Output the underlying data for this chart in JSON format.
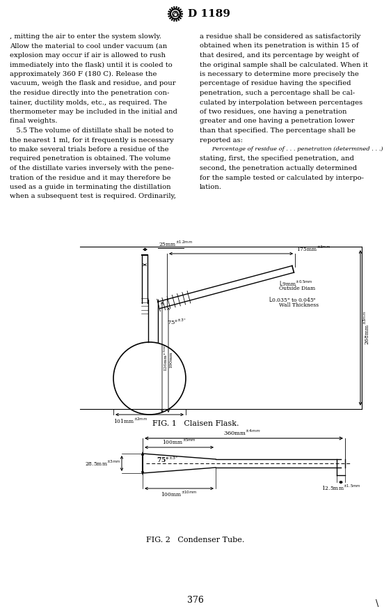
{
  "title": "D 1189",
  "page_number": "376",
  "left_col_lines": [
    ", mitting the air to enter the system slowly.",
    "Allow the material to cool under vacuum (an",
    "explosion may occur if air is allowed to rush",
    "immediately into the flask) until it is cooled to",
    "approximately 360 F (180 C). Release the",
    "vacuum, weigh the flask and residue, and pour",
    "the residue directly into the penetration con-",
    "tainer, ductility molds, etc., as required. The",
    "thermometer may be included in the initial and",
    "final weights.",
    "   5.5 The volume of distillate shall be noted to",
    "the nearest 1 ml, for it frequently is necessary",
    "to make several trials before a residue of the",
    "required penetration is obtained. The volume",
    "of the distillate varies inversely with the pene-",
    "tration of the residue and it may therefore be",
    "used as a guide in terminating the distillation",
    "when a subsequent test is required. Ordinarily,"
  ],
  "right_col_lines": [
    "a residue shall be considered as satisfactorily",
    "obtained when its penetration is within 15 of",
    "that desired, and its percentage by weight of",
    "the original sample shall be calculated. When it",
    "is necessary to determine more precisely the",
    "percentage of residue having the specified",
    "penetration, such a percentage shall be cal-",
    "culated by interpolation between percentages",
    "of two residues, one having a penetration",
    "greater and one having a penetration lower",
    "than that specified. The percentage shall be",
    "reported as:",
    "   Percentage of residue of . . . penetration (determined . . .)",
    "stating, first, the specified penetration, and",
    "second, the penetration actually determined",
    "for the sample tested or calculated by interpo-",
    "lation."
  ],
  "fig1_caption": "FIG. 1   Claisen Flask.",
  "fig2_caption": "FIG. 2   Condenser Tube.",
  "background_color": "#ffffff",
  "text_color": "#000000"
}
